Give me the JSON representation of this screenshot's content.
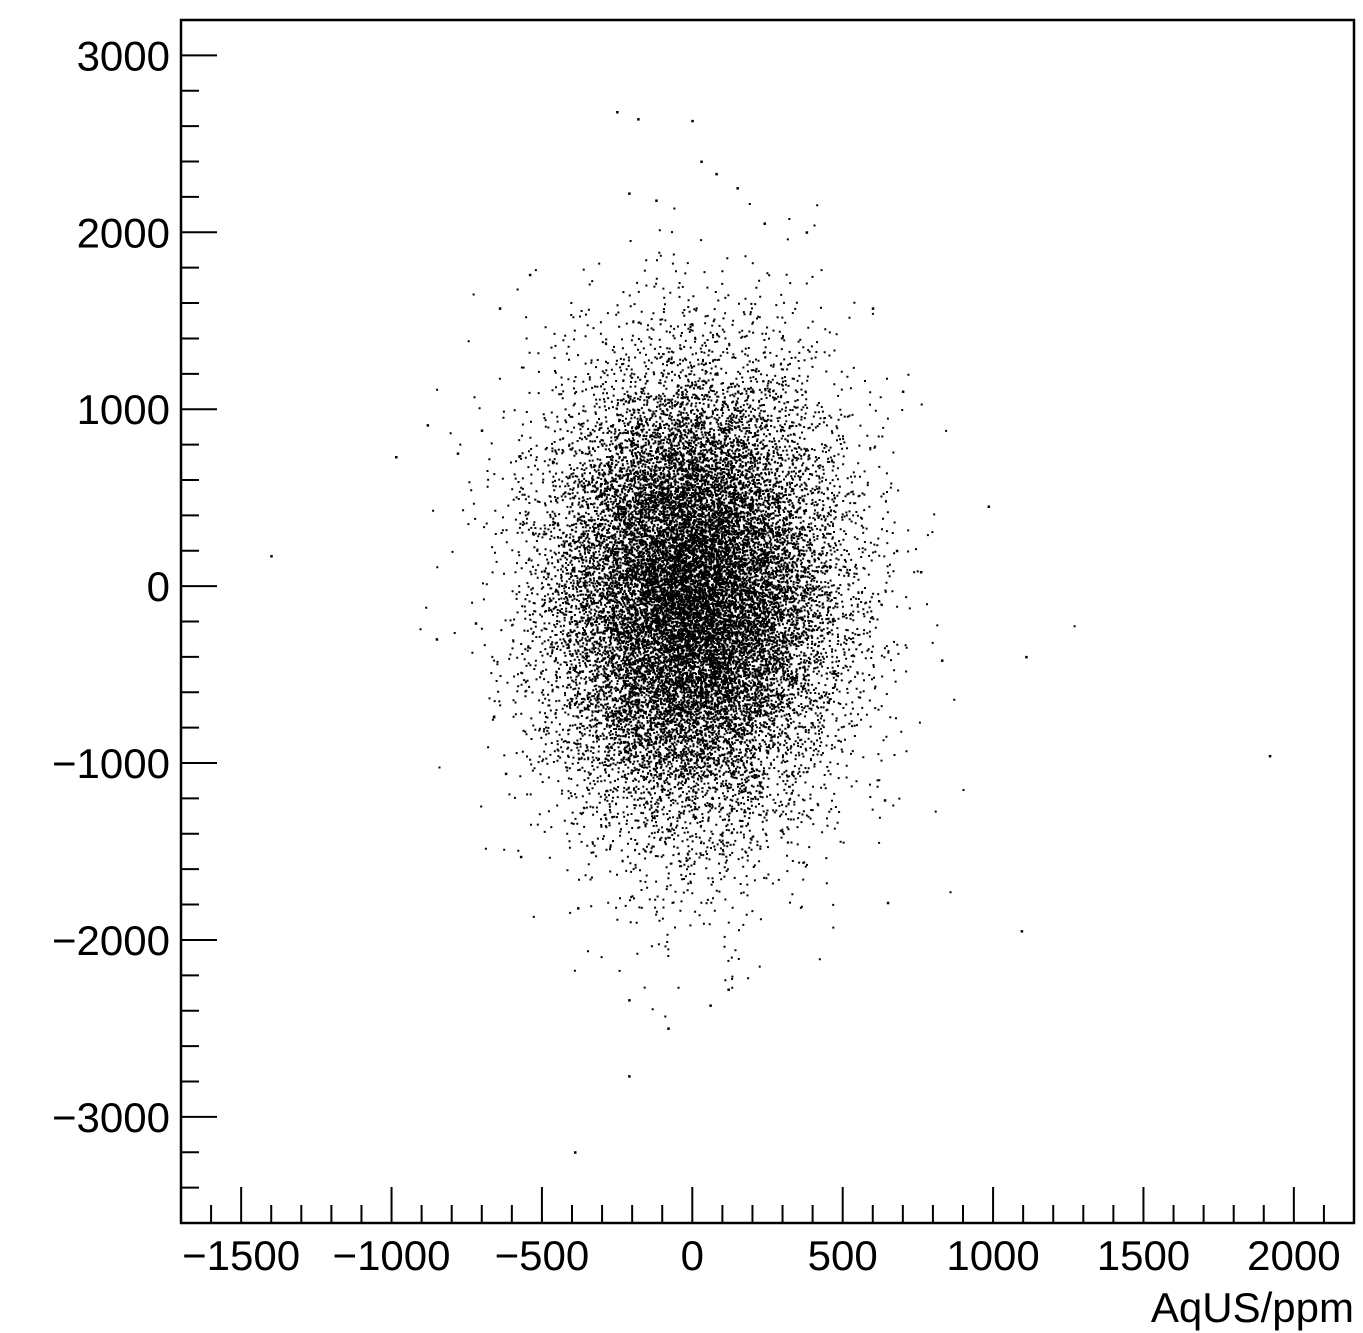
{
  "chart_data": {
    "type": "scatter",
    "title": "",
    "xlabel": "AqUS/ppm",
    "ylabel": "",
    "xlim": [
      -1700,
      2200
    ],
    "ylim": [
      -3600,
      3200
    ],
    "grid": false,
    "x_ticks": [
      {
        "value": -1500,
        "label": "−1500"
      },
      {
        "value": -1000,
        "label": "−1000"
      },
      {
        "value": -500,
        "label": "−500"
      },
      {
        "value": 0,
        "label": "0"
      },
      {
        "value": 500,
        "label": "500"
      },
      {
        "value": 1000,
        "label": "1000"
      },
      {
        "value": 1500,
        "label": "1500"
      },
      {
        "value": 2000,
        "label": "2000"
      }
    ],
    "y_ticks": [
      {
        "value": 3000,
        "label": "3000"
      },
      {
        "value": 2000,
        "label": "2000"
      },
      {
        "value": 1000,
        "label": "1000"
      },
      {
        "value": 0,
        "label": "0"
      },
      {
        "value": -1000,
        "label": "−1000"
      },
      {
        "value": -2000,
        "label": "−2000"
      },
      {
        "value": -3000,
        "label": "−3000"
      }
    ],
    "x_minor_step": 100,
    "y_minor_step": 200,
    "marker_color": "#000000",
    "core_distribution": {
      "n_points": 22000,
      "x_mean": 0,
      "x_sd": 230,
      "y_mean": -50,
      "y_sd": 620
    },
    "series": [
      {
        "values": [
          [
            -250,
            2680
          ],
          [
            -180,
            2640
          ],
          [
            0,
            2630
          ],
          [
            30,
            2400
          ],
          [
            80,
            2330
          ],
          [
            -210,
            2220
          ],
          [
            -120,
            2180
          ],
          [
            150,
            2250
          ],
          [
            240,
            2050
          ],
          [
            380,
            2000
          ],
          [
            -1400,
            170
          ],
          [
            -985,
            730
          ],
          [
            -880,
            910
          ],
          [
            -780,
            750
          ],
          [
            -640,
            1570
          ],
          [
            -700,
            880
          ],
          [
            -850,
            -300
          ],
          [
            -720,
            -210
          ],
          [
            -660,
            -740
          ],
          [
            -620,
            -1060
          ],
          [
            -570,
            -1530
          ],
          [
            -380,
            -1820
          ],
          [
            -210,
            -2340
          ],
          [
            -210,
            -2770
          ],
          [
            -390,
            -3200
          ],
          [
            -80,
            -2500
          ],
          [
            60,
            -2370
          ],
          [
            120,
            -2280
          ],
          [
            680,
            200
          ],
          [
            760,
            80
          ],
          [
            830,
            -420
          ],
          [
            650,
            -1790
          ],
          [
            640,
            -1210
          ],
          [
            985,
            450
          ],
          [
            1110,
            -400
          ],
          [
            1095,
            -1950
          ],
          [
            1920,
            -960
          ],
          [
            700,
            1100
          ],
          [
            600,
            1570
          ],
          [
            -540,
            1760
          ]
        ]
      }
    ]
  }
}
